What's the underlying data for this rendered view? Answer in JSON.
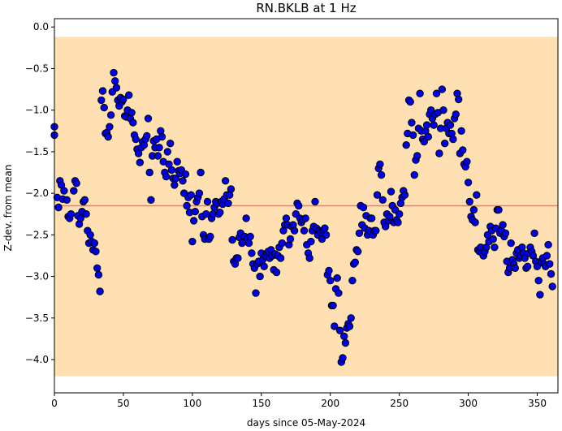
{
  "chart_data": {
    "type": "scatter",
    "title": "RN.BKLB at 1 Hz",
    "xlabel": "days since 05-May-2024",
    "ylabel": "Z-dev. from mean",
    "xlim": [
      0,
      365
    ],
    "ylim": [
      -4.4,
      0.1
    ],
    "xticks": [
      0,
      50,
      100,
      150,
      200,
      250,
      300,
      350
    ],
    "yticks": [
      0.0,
      -0.5,
      -1.0,
      -1.5,
      -2.0,
      -2.5,
      -3.0,
      -3.5,
      -4.0
    ],
    "xtick_labels": [
      "0",
      "50",
      "100",
      "150",
      "200",
      "250",
      "300",
      "350"
    ],
    "ytick_labels": [
      "0.0",
      "−0.5",
      "−1.0",
      "−1.5",
      "−2.0",
      "−2.5",
      "−3.0",
      "−3.5",
      "−4.0"
    ],
    "band": {
      "y_low": -4.2,
      "y_high": -0.12,
      "color": "#ffe0b2"
    },
    "mean_line": {
      "y": -2.15,
      "color": "#f47a6b"
    },
    "marker": {
      "fill": "#0000ee",
      "edge": "#000000"
    },
    "points": [
      [
        0,
        -1.2
      ],
      [
        0,
        -1.3
      ],
      [
        2,
        -2.05
      ],
      [
        3,
        -2.17
      ],
      [
        4,
        -1.85
      ],
      [
        5,
        -1.9
      ],
      [
        6,
        -2.07
      ],
      [
        7,
        -1.97
      ],
      [
        9,
        -2.08
      ],
      [
        10,
        -2.28
      ],
      [
        11,
        -2.3
      ],
      [
        12,
        -2.25
      ],
      [
        14,
        -1.97
      ],
      [
        15,
        -1.85
      ],
      [
        16,
        -1.88
      ],
      [
        17,
        -2.27
      ],
      [
        18,
        -2.37
      ],
      [
        19,
        -2.3
      ],
      [
        20,
        -2.22
      ],
      [
        21,
        -2.1
      ],
      [
        22,
        -2.08
      ],
      [
        23,
        -2.25
      ],
      [
        24,
        -2.45
      ],
      [
        25,
        -2.6
      ],
      [
        26,
        -2.5
      ],
      [
        27,
        -2.58
      ],
      [
        28,
        -2.68
      ],
      [
        29,
        -2.6
      ],
      [
        30,
        -2.7
      ],
      [
        31,
        -2.9
      ],
      [
        32,
        -2.98
      ],
      [
        33,
        -3.18
      ],
      [
        34,
        -0.88
      ],
      [
        35,
        -0.77
      ],
      [
        36,
        -0.97
      ],
      [
        37,
        -1.28
      ],
      [
        38,
        -1.27
      ],
      [
        39,
        -1.32
      ],
      [
        40,
        -1.2
      ],
      [
        41,
        -1.06
      ],
      [
        42,
        -0.78
      ],
      [
        43,
        -0.55
      ],
      [
        44,
        -0.65
      ],
      [
        45,
        -0.73
      ],
      [
        46,
        -0.88
      ],
      [
        47,
        -0.95
      ],
      [
        48,
        -0.85
      ],
      [
        49,
        -0.9
      ],
      [
        50,
        -0.87
      ],
      [
        51,
        -1.07
      ],
      [
        52,
        -1.08
      ],
      [
        53,
        -1.0
      ],
      [
        54,
        -0.82
      ],
      [
        55,
        -1.1
      ],
      [
        56,
        -1.03
      ],
      [
        57,
        -1.15
      ],
      [
        58,
        -1.3
      ],
      [
        59,
        -1.35
      ],
      [
        60,
        -1.47
      ],
      [
        61,
        -1.52
      ],
      [
        62,
        -1.63
      ],
      [
        63,
        -1.45
      ],
      [
        64,
        -1.38
      ],
      [
        65,
        -1.42
      ],
      [
        66,
        -1.35
      ],
      [
        67,
        -1.31
      ],
      [
        68,
        -1.1
      ],
      [
        69,
        -1.75
      ],
      [
        70,
        -2.08
      ],
      [
        71,
        -1.55
      ],
      [
        72,
        -1.37
      ],
      [
        73,
        -1.45
      ],
      [
        74,
        -1.35
      ],
      [
        75,
        -1.55
      ],
      [
        76,
        -1.45
      ],
      [
        77,
        -1.25
      ],
      [
        78,
        -1.32
      ],
      [
        79,
        -1.62
      ],
      [
        80,
        -1.75
      ],
      [
        81,
        -1.8
      ],
      [
        82,
        -1.5
      ],
      [
        83,
        -1.65
      ],
      [
        84,
        -1.4
      ],
      [
        85,
        -1.72
      ],
      [
        86,
        -1.82
      ],
      [
        87,
        -1.9
      ],
      [
        88,
        -1.82
      ],
      [
        89,
        -1.62
      ],
      [
        90,
        -1.73
      ],
      [
        91,
        -1.76
      ],
      [
        92,
        -1.72
      ],
      [
        93,
        -1.85
      ],
      [
        94,
        -2.0
      ],
      [
        95,
        -1.77
      ],
      [
        96,
        -2.15
      ],
      [
        97,
        -2.05
      ],
      [
        98,
        -2.23
      ],
      [
        99,
        -2.02
      ],
      [
        100,
        -2.58
      ],
      [
        101,
        -2.33
      ],
      [
        102,
        -2.22
      ],
      [
        103,
        -2.1
      ],
      [
        104,
        -2.05
      ],
      [
        105,
        -2.0
      ],
      [
        106,
        -1.75
      ],
      [
        107,
        -2.28
      ],
      [
        108,
        -2.5
      ],
      [
        109,
        -2.55
      ],
      [
        110,
        -2.25
      ],
      [
        111,
        -2.1
      ],
      [
        112,
        -2.55
      ],
      [
        113,
        -2.52
      ],
      [
        114,
        -2.3
      ],
      [
        115,
        -2.25
      ],
      [
        116,
        -2.17
      ],
      [
        117,
        -2.1
      ],
      [
        118,
        -2.12
      ],
      [
        119,
        -2.25
      ],
      [
        120,
        -2.23
      ],
      [
        121,
        -2.1
      ],
      [
        122,
        -2.13
      ],
      [
        123,
        -2.07
      ],
      [
        124,
        -1.85
      ],
      [
        125,
        -2.02
      ],
      [
        126,
        -2.12
      ],
      [
        127,
        -2.02
      ],
      [
        128,
        -1.95
      ],
      [
        129,
        -2.56
      ],
      [
        130,
        -2.82
      ],
      [
        131,
        -2.85
      ],
      [
        132,
        -2.78
      ],
      [
        133,
        -2.78
      ],
      [
        134,
        -2.53
      ],
      [
        135,
        -2.48
      ],
      [
        136,
        -2.6
      ],
      [
        137,
        -2.58
      ],
      [
        138,
        -2.52
      ],
      [
        139,
        -2.3
      ],
      [
        140,
        -2.55
      ],
      [
        141,
        -2.6
      ],
      [
        142,
        -2.52
      ],
      [
        143,
        -2.72
      ],
      [
        144,
        -2.85
      ],
      [
        145,
        -2.9
      ],
      [
        146,
        -3.2
      ],
      [
        147,
        -2.85
      ],
      [
        148,
        -2.82
      ],
      [
        149,
        -3.0
      ],
      [
        150,
        -2.72
      ],
      [
        151,
        -2.8
      ],
      [
        152,
        -2.88
      ],
      [
        153,
        -2.75
      ],
      [
        154,
        -2.72
      ],
      [
        155,
        -2.7
      ],
      [
        156,
        -2.78
      ],
      [
        157,
        -2.68
      ],
      [
        158,
        -2.75
      ],
      [
        159,
        -2.92
      ],
      [
        160,
        -2.73
      ],
      [
        161,
        -2.95
      ],
      [
        162,
        -2.75
      ],
      [
        163,
        -2.65
      ],
      [
        164,
        -2.78
      ],
      [
        165,
        -2.6
      ],
      [
        166,
        -2.45
      ],
      [
        167,
        -2.38
      ],
      [
        168,
        -2.3
      ],
      [
        169,
        -2.38
      ],
      [
        170,
        -2.62
      ],
      [
        171,
        -2.55
      ],
      [
        172,
        -2.4
      ],
      [
        173,
        -2.38
      ],
      [
        174,
        -2.45
      ],
      [
        175,
        -2.25
      ],
      [
        176,
        -2.12
      ],
      [
        177,
        -2.15
      ],
      [
        178,
        -2.3
      ],
      [
        179,
        -2.35
      ],
      [
        180,
        -2.32
      ],
      [
        181,
        -2.45
      ],
      [
        182,
        -2.3
      ],
      [
        183,
        -2.62
      ],
      [
        184,
        -2.72
      ],
      [
        185,
        -2.78
      ],
      [
        186,
        -2.58
      ],
      [
        187,
        -2.45
      ],
      [
        188,
        -2.4
      ],
      [
        189,
        -2.1
      ],
      [
        190,
        -2.42
      ],
      [
        191,
        -2.5
      ],
      [
        192,
        -2.45
      ],
      [
        193,
        -2.47
      ],
      [
        194,
        -2.55
      ],
      [
        195,
        -2.45
      ],
      [
        196,
        -2.42
      ],
      [
        197,
        -2.5
      ],
      [
        198,
        -2.98
      ],
      [
        199,
        -2.93
      ],
      [
        200,
        -3.05
      ],
      [
        201,
        -3.35
      ],
      [
        202,
        -3.35
      ],
      [
        203,
        -3.6
      ],
      [
        204,
        -3.15
      ],
      [
        205,
        -3.02
      ],
      [
        206,
        -3.2
      ],
      [
        207,
        -3.65
      ],
      [
        208,
        -4.03
      ],
      [
        209,
        -3.98
      ],
      [
        210,
        -3.72
      ],
      [
        211,
        -3.8
      ],
      [
        212,
        -3.62
      ],
      [
        213,
        -3.57
      ],
      [
        214,
        -3.6
      ],
      [
        215,
        -3.5
      ],
      [
        216,
        -3.05
      ],
      [
        217,
        -2.85
      ],
      [
        218,
        -2.83
      ],
      [
        219,
        -2.68
      ],
      [
        220,
        -2.7
      ],
      [
        221,
        -2.48
      ],
      [
        222,
        -2.15
      ],
      [
        223,
        -2.38
      ],
      [
        224,
        -2.17
      ],
      [
        225,
        -2.42
      ],
      [
        226,
        -2.27
      ],
      [
        227,
        -2.5
      ],
      [
        228,
        -2.45
      ],
      [
        229,
        -2.3
      ],
      [
        230,
        -2.3
      ],
      [
        231,
        -2.5
      ],
      [
        232,
        -2.45
      ],
      [
        233,
        -2.45
      ],
      [
        234,
        -2.02
      ],
      [
        235,
        -1.7
      ],
      [
        236,
        -1.65
      ],
      [
        237,
        -1.78
      ],
      [
        238,
        -2.08
      ],
      [
        239,
        -2.35
      ],
      [
        240,
        -2.4
      ],
      [
        241,
        -2.25
      ],
      [
        242,
        -2.33
      ],
      [
        243,
        -2.28
      ],
      [
        244,
        -1.98
      ],
      [
        245,
        -2.15
      ],
      [
        246,
        -2.35
      ],
      [
        247,
        -2.2
      ],
      [
        248,
        -2.32
      ],
      [
        249,
        -2.35
      ],
      [
        250,
        -2.25
      ],
      [
        251,
        -2.12
      ],
      [
        252,
        -2.05
      ],
      [
        253,
        -1.97
      ],
      [
        254,
        -2.02
      ],
      [
        255,
        -1.42
      ],
      [
        256,
        -1.28
      ],
      [
        257,
        -0.88
      ],
      [
        258,
        -0.9
      ],
      [
        259,
        -1.15
      ],
      [
        260,
        -1.3
      ],
      [
        261,
        -1.78
      ],
      [
        262,
        -1.6
      ],
      [
        263,
        -1.55
      ],
      [
        264,
        -1.22
      ],
      [
        265,
        -0.8
      ],
      [
        266,
        -1.25
      ],
      [
        267,
        -1.35
      ],
      [
        268,
        -1.38
      ],
      [
        269,
        -1.25
      ],
      [
        270,
        -1.18
      ],
      [
        271,
        -1.32
      ],
      [
        272,
        -1.05
      ],
      [
        273,
        -1.0
      ],
      [
        274,
        -1.1
      ],
      [
        275,
        -1.18
      ],
      [
        276,
        -1.05
      ],
      [
        277,
        -0.8
      ],
      [
        278,
        -1.03
      ],
      [
        279,
        -1.52
      ],
      [
        280,
        -1.22
      ],
      [
        281,
        -0.75
      ],
      [
        282,
        -1.0
      ],
      [
        283,
        -1.4
      ],
      [
        284,
        -1.22
      ],
      [
        285,
        -1.15
      ],
      [
        286,
        -1.28
      ],
      [
        287,
        -1.18
      ],
      [
        288,
        -1.28
      ],
      [
        289,
        -1.35
      ],
      [
        290,
        -1.1
      ],
      [
        291,
        -1.05
      ],
      [
        292,
        -0.8
      ],
      [
        293,
        -0.87
      ],
      [
        294,
        -1.52
      ],
      [
        295,
        -1.25
      ],
      [
        296,
        -1.48
      ],
      [
        297,
        -1.65
      ],
      [
        298,
        -1.68
      ],
      [
        299,
        -1.62
      ],
      [
        300,
        -1.87
      ],
      [
        301,
        -2.1
      ],
      [
        302,
        -2.28
      ],
      [
        303,
        -2.32
      ],
      [
        304,
        -2.2
      ],
      [
        305,
        -2.35
      ],
      [
        306,
        -2.02
      ],
      [
        307,
        -2.68
      ],
      [
        308,
        -2.7
      ],
      [
        309,
        -2.65
      ],
      [
        310,
        -2.72
      ],
      [
        311,
        -2.75
      ],
      [
        312,
        -2.7
      ],
      [
        313,
        -2.65
      ],
      [
        314,
        -2.5
      ],
      [
        315,
        -2.58
      ],
      [
        316,
        -2.4
      ],
      [
        317,
        -2.45
      ],
      [
        318,
        -2.55
      ],
      [
        319,
        -2.65
      ],
      [
        320,
        -2.42
      ],
      [
        321,
        -2.2
      ],
      [
        322,
        -2.2
      ],
      [
        323,
        -2.48
      ],
      [
        324,
        -2.45
      ],
      [
        325,
        -2.38
      ],
      [
        326,
        -2.52
      ],
      [
        327,
        -2.48
      ],
      [
        328,
        -2.82
      ],
      [
        329,
        -2.95
      ],
      [
        330,
        -2.9
      ],
      [
        331,
        -2.6
      ],
      [
        332,
        -2.8
      ],
      [
        333,
        -2.85
      ],
      [
        334,
        -2.9
      ],
      [
        335,
        -2.72
      ],
      [
        336,
        -2.68
      ],
      [
        337,
        -2.78
      ],
      [
        338,
        -2.75
      ],
      [
        339,
        -2.65
      ],
      [
        340,
        -2.72
      ],
      [
        341,
        -2.78
      ],
      [
        342,
        -2.9
      ],
      [
        343,
        -2.88
      ],
      [
        344,
        -2.72
      ],
      [
        345,
        -2.65
      ],
      [
        346,
        -2.7
      ],
      [
        347,
        -2.75
      ],
      [
        348,
        -2.48
      ],
      [
        349,
        -2.82
      ],
      [
        350,
        -2.88
      ],
      [
        351,
        -3.05
      ],
      [
        352,
        -3.22
      ],
      [
        353,
        -2.82
      ],
      [
        354,
        -2.78
      ],
      [
        355,
        -2.85
      ],
      [
        356,
        -2.88
      ],
      [
        357,
        -2.75
      ],
      [
        358,
        -2.62
      ],
      [
        359,
        -2.85
      ],
      [
        360,
        -2.97
      ],
      [
        361,
        -3.12
      ]
    ]
  }
}
